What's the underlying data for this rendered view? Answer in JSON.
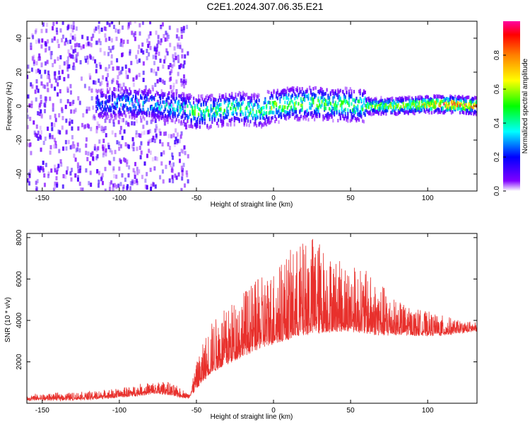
{
  "title": "C2E1.2024.307.06.35.E21",
  "chart_data": [
    {
      "type": "heatmap",
      "xlabel": "Height of straight line (km)",
      "ylabel": "Frequency (Hz)",
      "xlim": [
        -160,
        132
      ],
      "ylim": [
        -50,
        50
      ],
      "xticks": [
        -150,
        -100,
        -50,
        0,
        50,
        100
      ],
      "yticks": [
        -40,
        -20,
        0,
        20,
        40
      ],
      "colorbar": {
        "label": "Normalized spectral amplitude",
        "range": [
          0,
          1
        ],
        "ticks": [
          "0.0",
          "0.2",
          "0.4",
          "0.6",
          "0.8"
        ],
        "colors": [
          "#ffffff",
          "#8000ff",
          "#0000ff",
          "#00ffff",
          "#00ff00",
          "#ffff00",
          "#ff8000",
          "#ff0000",
          "#ff00a0"
        ]
      },
      "ridge": {
        "x": [
          -115,
          -100,
          -80,
          -60,
          -50,
          -40,
          -25,
          -10,
          0,
          10,
          25,
          40,
          60,
          80,
          100,
          115,
          132
        ],
        "center_hz": [
          1,
          2,
          1,
          -1,
          -4,
          -3,
          -1,
          -3,
          0,
          1,
          2,
          1,
          0,
          0,
          1,
          1,
          0
        ],
        "amplitude": [
          0.25,
          0.35,
          0.38,
          0.42,
          0.55,
          0.5,
          0.5,
          0.55,
          0.6,
          0.6,
          0.55,
          0.55,
          0.6,
          0.7,
          0.8,
          0.95,
          0.95
        ]
      },
      "noise_region_km": [
        -160,
        -55
      ]
    },
    {
      "type": "line",
      "xlabel": "Height of straight line (km)",
      "ylabel": "SNR (10 * v/v)",
      "xlim": [
        -160,
        132
      ],
      "ylim": [
        0,
        8200
      ],
      "xticks": [
        -150,
        -100,
        -50,
        0,
        50,
        100
      ],
      "yticks": [
        2000,
        4000,
        6000,
        8000
      ],
      "color": "#e8302c",
      "envelope": {
        "x": [
          -160,
          -120,
          -100,
          -80,
          -70,
          -60,
          -55,
          -50,
          -45,
          -40,
          -30,
          -20,
          -10,
          0,
          10,
          20,
          25,
          30,
          40,
          50,
          60,
          70,
          80,
          90,
          100,
          110,
          120,
          132
        ],
        "base": [
          150,
          200,
          300,
          450,
          450,
          300,
          250,
          700,
          1100,
          1500,
          1900,
          2300,
          2600,
          2900,
          3100,
          3300,
          3400,
          3400,
          3500,
          3500,
          3400,
          3300,
          3300,
          3300,
          3300,
          3300,
          3400,
          3500
        ],
        "peak": [
          400,
          550,
          700,
          1000,
          1050,
          700,
          450,
          1900,
          3100,
          4000,
          4700,
          5500,
          6000,
          6600,
          7300,
          7900,
          8200,
          7900,
          7000,
          6800,
          6400,
          5800,
          5000,
          4600,
          4400,
          4200,
          4000,
          3900
        ]
      }
    }
  ]
}
